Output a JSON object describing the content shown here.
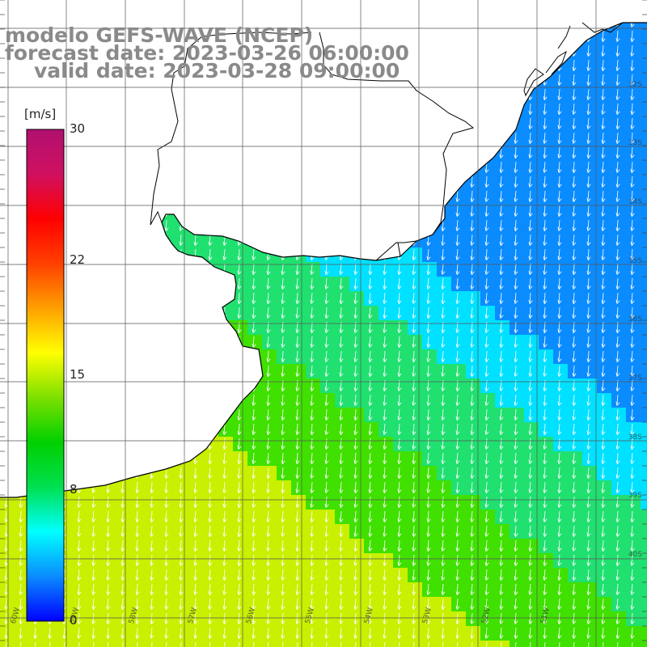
{
  "title": {
    "line1": "modelo GEFS-WAVE (NCEP)",
    "line2": "forecast date: 2023-03-26 06:00:00",
    "line3": "valid date: 2023-03-28 09:00:00"
  },
  "colorbar": {
    "unit": "[m/s]",
    "min": 0,
    "max": 30,
    "ticks": [
      "30",
      "22",
      "15",
      "8",
      "0"
    ],
    "tick_values": [
      30,
      22,
      15,
      8,
      0
    ],
    "gradient": [
      "#0000ff",
      "#0a8cff",
      "#00ffff",
      "#00e050",
      "#00d000",
      "#7de000",
      "#ffff00",
      "#ffa000",
      "#ff4000",
      "#ff0000",
      "#d01060",
      "#b01070"
    ]
  },
  "map": {
    "field": "wind speed and direction",
    "ocean_colors": {
      "weak": "#0a8cff",
      "moderate": "#00e0ff",
      "fresh": "#20e070",
      "strong": "#40e000",
      "near_gale": "#c8f000"
    },
    "land_color": "#ffffff",
    "coast_color": "#000000",
    "grid_color": "#555555",
    "arrow_color": "#ffffff",
    "lat_labels": [
      "32S",
      "33S",
      "34S",
      "35S",
      "36S",
      "37S",
      "38S",
      "39S",
      "40S"
    ],
    "lon_labels": [
      "60W",
      "59W",
      "58W",
      "57W",
      "56W",
      "55W",
      "54W",
      "53W",
      "52W",
      "51W"
    ]
  }
}
